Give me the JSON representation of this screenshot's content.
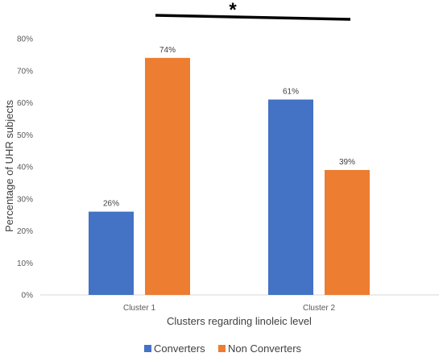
{
  "chart_data": {
    "type": "bar",
    "categories": [
      "Cluster 1",
      "Cluster 2"
    ],
    "series": [
      {
        "name": "Converters",
        "values": [
          26,
          61
        ],
        "labels": [
          "26%",
          "61%"
        ],
        "color": "#4472C4"
      },
      {
        "name": "Non Converters",
        "values": [
          74,
          39
        ],
        "labels": [
          "74%",
          "39%"
        ],
        "color": "#ED7D31"
      }
    ],
    "xlabel": "Clusters regarding linoleic level",
    "ylabel": "Percentage of UHR subjects",
    "ylim": [
      0,
      80
    ],
    "yticks": [
      0,
      10,
      20,
      30,
      40,
      50,
      60,
      70,
      80
    ],
    "ytick_labels": [
      "0%",
      "10%",
      "20%",
      "30%",
      "40%",
      "50%",
      "60%",
      "70%",
      "80%"
    ],
    "grid": false,
    "legend_position": "bottom",
    "annotation": {
      "text": "*",
      "spans": "Cluster 1 to Cluster 2",
      "meaning": "significance bracket"
    }
  }
}
